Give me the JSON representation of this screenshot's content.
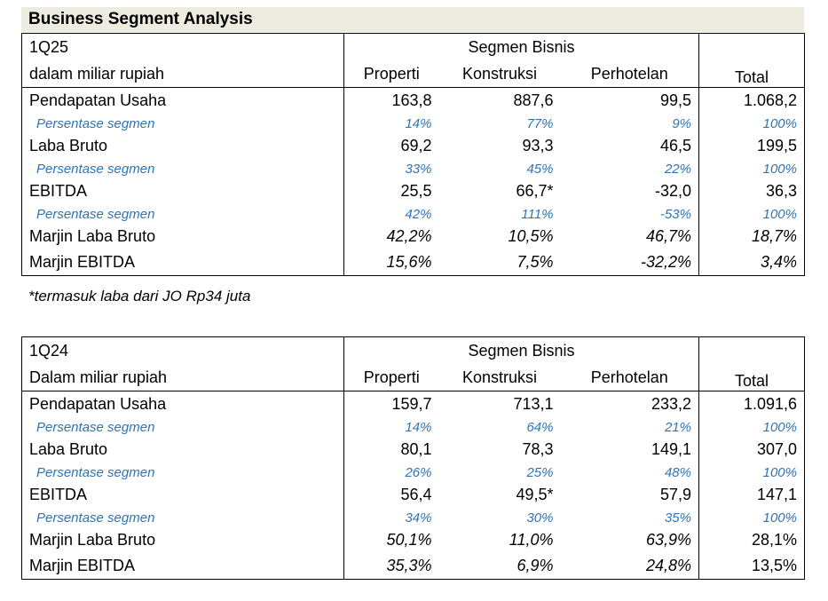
{
  "title": "Business Segment Analysis",
  "footnote": "*termasuk laba dari JO Rp34 juta",
  "tables": [
    {
      "period": "1Q25",
      "unit": "dalam miliar rupiah",
      "group_header": "Segmen Bisnis",
      "columns": [
        "Properti",
        "Konstruksi",
        "Perhotelan",
        "Total"
      ],
      "rows": [
        {
          "label": "Pendapatan Usaha",
          "values": [
            "163,8",
            "887,6",
            "99,5",
            "1.068,2"
          ]
        },
        {
          "label": "Persentase segmen",
          "values": [
            "14%",
            "77%",
            "9%",
            "100%"
          ]
        },
        {
          "label": "Laba Bruto",
          "values": [
            "69,2",
            "93,3",
            "46,5",
            "199,5"
          ]
        },
        {
          "label": "Persentase segmen",
          "values": [
            "33%",
            "45%",
            "22%",
            "100%"
          ]
        },
        {
          "label": "EBITDA",
          "values": [
            "25,5",
            "66,7*",
            "-32,0",
            "36,3"
          ]
        },
        {
          "label": "Persentase segmen",
          "values": [
            "42%",
            "111%",
            "-53%",
            "100%"
          ]
        },
        {
          "label": "Marjin Laba Bruto",
          "values": [
            "42,2%",
            "10,5%",
            "46,7%",
            "18,7%"
          ]
        },
        {
          "label": "Marjin EBITDA",
          "values": [
            "15,6%",
            "7,5%",
            "-32,2%",
            "3,4%"
          ]
        }
      ]
    },
    {
      "period": "1Q24",
      "unit": "Dalam miliar rupiah",
      "group_header": "Segmen Bisnis",
      "columns": [
        "Properti",
        "Konstruksi",
        "Perhotelan",
        "Total"
      ],
      "rows": [
        {
          "label": "Pendapatan Usaha",
          "values": [
            "159,7",
            "713,1",
            "233,2",
            "1.091,6"
          ]
        },
        {
          "label": "Persentase segmen",
          "values": [
            "14%",
            "64%",
            "21%",
            "100%"
          ]
        },
        {
          "label": "Laba Bruto",
          "values": [
            "80,1",
            "78,3",
            "149,1",
            "307,0"
          ]
        },
        {
          "label": "Persentase segmen",
          "values": [
            "26%",
            "25%",
            "48%",
            "100%"
          ]
        },
        {
          "label": "EBITDA",
          "values": [
            "56,4",
            "49,5*",
            "57,9",
            "147,1"
          ]
        },
        {
          "label": "Persentase segmen",
          "values": [
            "34%",
            "30%",
            "35%",
            "100%"
          ]
        },
        {
          "label": "Marjin Laba Bruto",
          "values": [
            "50,1%",
            "11,0%",
            "63,9%",
            "28,1%"
          ]
        },
        {
          "label": "Marjin EBITDA",
          "values": [
            "35,3%",
            "6,9%",
            "24,8%",
            "13,5%"
          ]
        }
      ]
    }
  ]
}
